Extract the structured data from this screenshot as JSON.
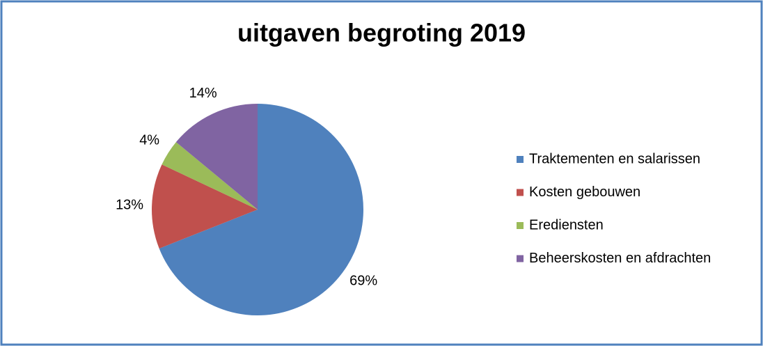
{
  "chart_data": {
    "type": "pie",
    "title": "uitgaven begroting 2019",
    "categories": [
      "Traktementen en salarissen",
      "Kosten gebouwen",
      "Erediensten",
      "Beheerskosten en afdrachten"
    ],
    "values": [
      69,
      13,
      4,
      14
    ],
    "value_labels": [
      "69%",
      "13%",
      "4%",
      "14%"
    ],
    "colors": [
      "#4f81bd",
      "#c0504d",
      "#9bbb59",
      "#8064a2"
    ],
    "legend": "right"
  }
}
